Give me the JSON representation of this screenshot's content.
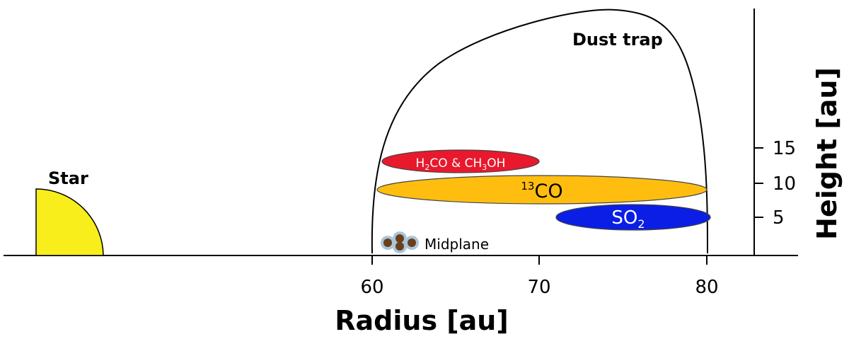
{
  "labels": {
    "star": "Star",
    "dust_trap": "Dust trap",
    "midplane": "Midplane",
    "x_axis_title": "Radius [au]",
    "y_axis_title": "Height [au]"
  },
  "x_axis": {
    "ticks": [
      "60",
      "70",
      "80"
    ]
  },
  "y_axis": {
    "ticks": [
      "5",
      "10",
      "15"
    ]
  },
  "regions": [
    {
      "id": "h2co-ch3oh",
      "text_parts": [
        "H",
        "2",
        "CO & CH",
        "3",
        "OH"
      ],
      "color": "#e8192c"
    },
    {
      "id": "13co",
      "text_parts": [
        "13",
        "CO"
      ],
      "color": "#ffbe0f"
    },
    {
      "id": "so2",
      "text_parts": [
        "SO",
        "2"
      ],
      "color": "#0a1ee6"
    }
  ],
  "colors": {
    "star": "#f7ee1b",
    "midplane_grain": "#6b3f1b",
    "midplane_halo": "#a9c6da"
  }
}
